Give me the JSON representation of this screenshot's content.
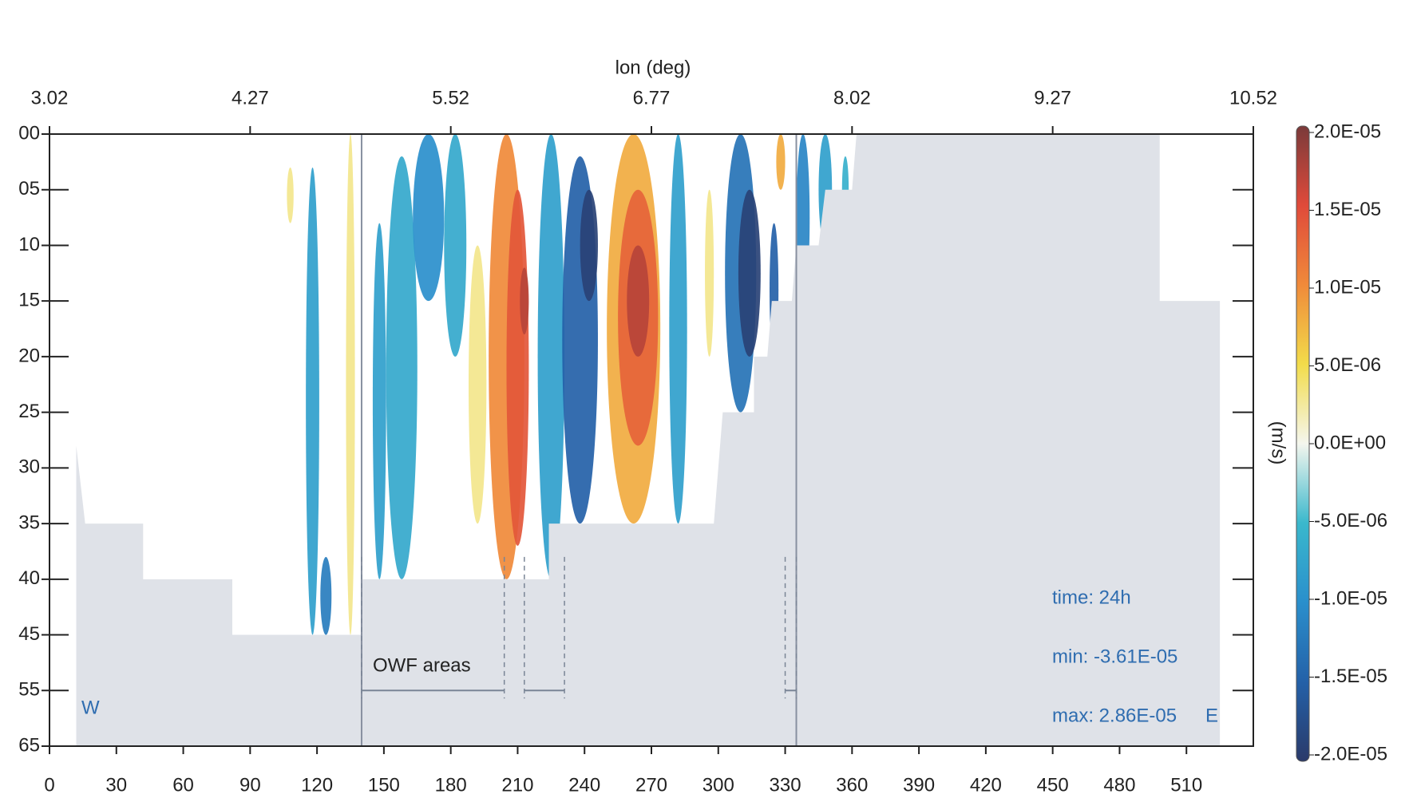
{
  "chart_data": {
    "type": "section",
    "x2label": "lon (deg)",
    "xlim": [
      0,
      540
    ],
    "xticks": [
      0,
      30,
      60,
      90,
      120,
      150,
      180,
      210,
      240,
      270,
      300,
      330,
      360,
      390,
      420,
      450,
      480,
      510
    ],
    "x2lim": [
      3.02,
      10.52
    ],
    "x2ticks": [
      3.02,
      4.27,
      5.52,
      6.77,
      8.02,
      9.27,
      10.52
    ],
    "ylim": [
      0,
      65
    ],
    "yticks": [
      {
        "value": 0,
        "label": "00"
      },
      {
        "value": 5,
        "label": "05"
      },
      10,
      15,
      20,
      25,
      30,
      35,
      40,
      45,
      55,
      65
    ],
    "colorbar": {
      "label": "(m/s)",
      "ticks": [
        {
          "value": 2e-05,
          "label": "2.0E-05"
        },
        {
          "value": 1.5e-05,
          "label": "1.5E-05"
        },
        {
          "value": 1e-05,
          "label": "1.0E-05"
        },
        {
          "value": 5e-06,
          "label": "5.0E-06"
        },
        {
          "value": 0,
          "label": "0.0E+00"
        },
        {
          "value": -5e-06,
          "label": "-5.0E-06"
        },
        {
          "value": -1e-05,
          "label": "-1.0E-05"
        },
        {
          "value": -1.5e-05,
          "label": "-1.5E-05"
        },
        {
          "value": -2e-05,
          "label": "-2.0E-05"
        }
      ],
      "colors": [
        "#7a3a3a",
        "#e04a3a",
        "#f08a3a",
        "#f2dc4a",
        "#f4f6ee",
        "#3ab8cc",
        "#2a8fcc",
        "#2461a8",
        "#2a3a6a"
      ]
    },
    "features": [
      {
        "x": 108,
        "width": 3,
        "top": 3,
        "bottom": 8,
        "value": 3e-06
      },
      {
        "x": 118,
        "width": 6,
        "top": 3,
        "bottom": 45,
        "value": -8e-06
      },
      {
        "x": 124,
        "width": 5,
        "top": 38,
        "bottom": 45,
        "value": -1.2e-05
      },
      {
        "x": 135,
        "width": 4,
        "top": 0,
        "bottom": 45,
        "value": 3e-06
      },
      {
        "x": 148,
        "width": 6,
        "top": 8,
        "bottom": 40,
        "value": -8e-06
      },
      {
        "x": 158,
        "width": 14,
        "top": 2,
        "bottom": 40,
        "value": -7e-06
      },
      {
        "x": 170,
        "width": 14,
        "top": 0,
        "bottom": 15,
        "value": -1e-05
      },
      {
        "x": 182,
        "width": 10,
        "top": 0,
        "bottom": 20,
        "value": -7e-06
      },
      {
        "x": 192,
        "width": 8,
        "top": 10,
        "bottom": 35,
        "value": 3e-06
      },
      {
        "x": 205,
        "width": 16,
        "top": 0,
        "bottom": 40,
        "value": 1e-05
      },
      {
        "x": 210,
        "width": 10,
        "top": 5,
        "bottom": 37,
        "value": 1.4e-05
      },
      {
        "x": 213,
        "width": 4,
        "top": 12,
        "bottom": 18,
        "value": 1.7e-05
      },
      {
        "x": 225,
        "width": 12,
        "top": 0,
        "bottom": 40,
        "value": -8e-06
      },
      {
        "x": 238,
        "width": 16,
        "top": 2,
        "bottom": 35,
        "value": -1.5e-05
      },
      {
        "x": 242,
        "width": 8,
        "top": 5,
        "bottom": 15,
        "value": -1.9e-05
      },
      {
        "x": 262,
        "width": 24,
        "top": 0,
        "bottom": 35,
        "value": 8e-06
      },
      {
        "x": 264,
        "width": 18,
        "top": 5,
        "bottom": 28,
        "value": 1.3e-05
      },
      {
        "x": 264,
        "width": 10,
        "top": 10,
        "bottom": 20,
        "value": 1.7e-05
      },
      {
        "x": 282,
        "width": 8,
        "top": 0,
        "bottom": 35,
        "value": -8e-06
      },
      {
        "x": 296,
        "width": 4,
        "top": 5,
        "bottom": 20,
        "value": 3e-06
      },
      {
        "x": 310,
        "width": 14,
        "top": 0,
        "bottom": 25,
        "value": -1.3e-05
      },
      {
        "x": 314,
        "width": 10,
        "top": 5,
        "bottom": 20,
        "value": -1.9e-05
      },
      {
        "x": 325,
        "width": 4,
        "top": 8,
        "bottom": 20,
        "value": -1.5e-05
      },
      {
        "x": 328,
        "width": 4,
        "top": 0,
        "bottom": 5,
        "value": 8e-06
      },
      {
        "x": 338,
        "width": 6,
        "top": 0,
        "bottom": 15,
        "value": -1.1e-05
      },
      {
        "x": 348,
        "width": 6,
        "top": 0,
        "bottom": 10,
        "value": -8e-06
      },
      {
        "x": 357,
        "width": 3,
        "top": 2,
        "bottom": 8,
        "value": -6e-06
      }
    ],
    "bathymetry": {
      "x": [
        12,
        16,
        42,
        42,
        82,
        82,
        140,
        140,
        224,
        224,
        298,
        300,
        302,
        316,
        316,
        322,
        324,
        333,
        335,
        345,
        348,
        360,
        362,
        498,
        498,
        525,
        525
      ],
      "depth": [
        28,
        35,
        35,
        40,
        40,
        45,
        45,
        40,
        40,
        35,
        35,
        30,
        25,
        25,
        20,
        20,
        15,
        15,
        10,
        10,
        5,
        5,
        0,
        0,
        15,
        15,
        65
      ]
    },
    "boundaries": [
      140,
      335
    ],
    "owf_areas": [
      [
        140,
        204
      ],
      [
        213,
        231
      ],
      [
        330,
        335
      ]
    ],
    "owf_label": "OWF areas",
    "west_label": "W",
    "east_label": "E",
    "stats": [
      "time: 24h",
      "min: -3.61E-05",
      "max: 2.86E-05"
    ]
  }
}
